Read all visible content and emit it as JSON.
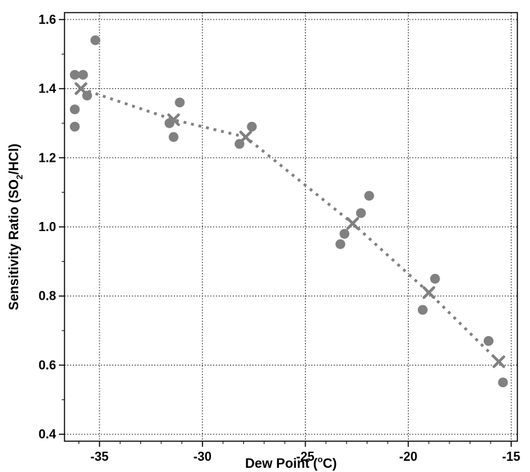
{
  "chart_data": {
    "type": "scatter",
    "xlabel": {
      "prefix": "Dew Point (",
      "sup": "o",
      "suffix": "C)"
    },
    "ylabel": {
      "prefix": "Sensitivity Ratio (SO",
      "sub": "2",
      "suffix": "/HCl)"
    },
    "xlim": [
      -36.7,
      -14.7
    ],
    "ylim": [
      0.38,
      1.62
    ],
    "xticks": [
      -35,
      -30,
      -25,
      -20,
      -15
    ],
    "yticks": [
      0.4,
      0.6,
      0.8,
      1.0,
      1.2,
      1.4,
      1.6
    ],
    "xtick_labels": [
      "-35",
      "-30",
      "-25",
      "-20",
      "-15"
    ],
    "ytick_labels": [
      "0.4",
      "0.6",
      "0.8",
      "1.0",
      "1.2",
      "1.4",
      "1.6"
    ],
    "grid": true,
    "marker_color": "#808080",
    "series": [
      {
        "marker": "circle",
        "points": [
          {
            "x": -36.2,
            "y": 1.44
          },
          {
            "x": -35.8,
            "y": 1.44
          },
          {
            "x": -35.6,
            "y": 1.38
          },
          {
            "x": -36.2,
            "y": 1.34
          },
          {
            "x": -36.2,
            "y": 1.29
          },
          {
            "x": -35.2,
            "y": 1.54
          },
          {
            "x": -31.6,
            "y": 1.3
          },
          {
            "x": -31.4,
            "y": 1.26
          },
          {
            "x": -31.1,
            "y": 1.36
          },
          {
            "x": -28.2,
            "y": 1.24
          },
          {
            "x": -27.6,
            "y": 1.29
          },
          {
            "x": -23.3,
            "y": 0.95
          },
          {
            "x": -23.1,
            "y": 0.98
          },
          {
            "x": -22.3,
            "y": 1.04
          },
          {
            "x": -21.9,
            "y": 1.09
          },
          {
            "x": -19.3,
            "y": 0.76
          },
          {
            "x": -18.7,
            "y": 0.85
          },
          {
            "x": -16.1,
            "y": 0.67
          },
          {
            "x": -15.4,
            "y": 0.55
          }
        ]
      },
      {
        "marker": "x",
        "line": "dotted",
        "points": [
          {
            "x": -35.9,
            "y": 1.4
          },
          {
            "x": -31.4,
            "y": 1.31
          },
          {
            "x": -27.9,
            "y": 1.26
          },
          {
            "x": -22.7,
            "y": 1.01
          },
          {
            "x": -19.0,
            "y": 0.81
          },
          {
            "x": -15.6,
            "y": 0.61
          }
        ]
      }
    ]
  }
}
